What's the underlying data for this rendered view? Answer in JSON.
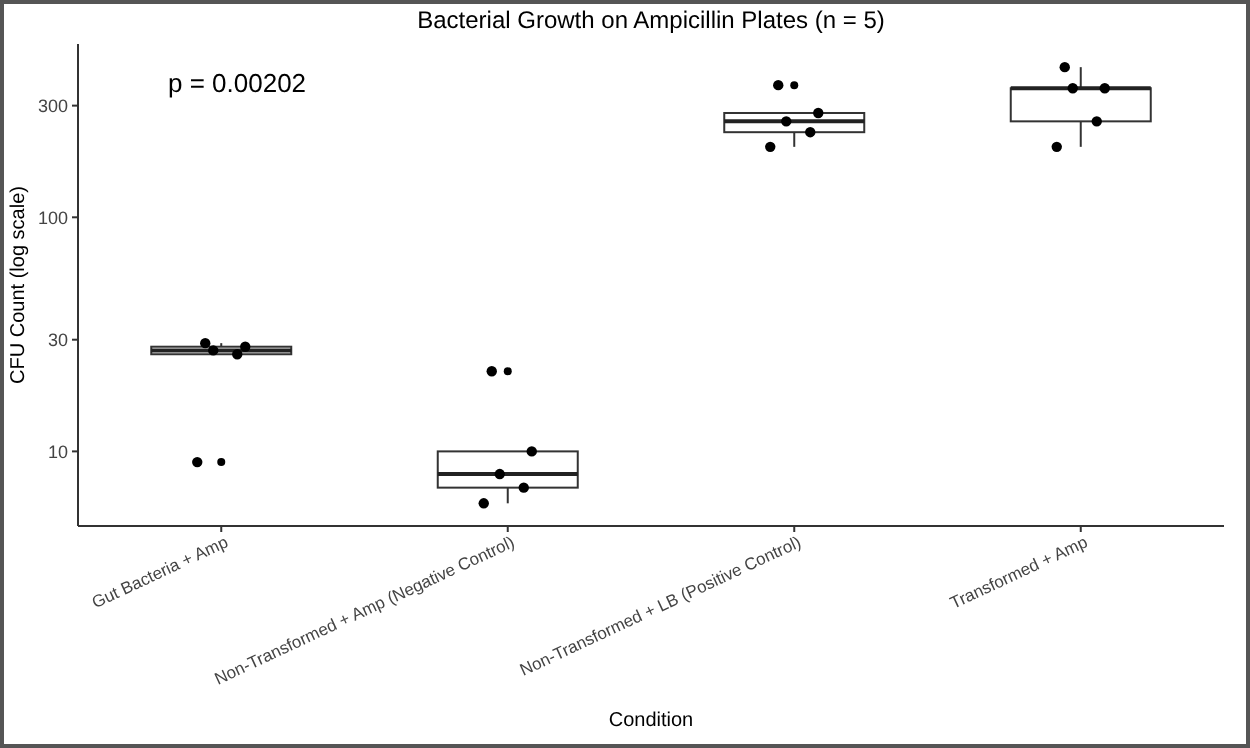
{
  "chart_data": {
    "type": "box",
    "title": "Bacterial Growth on Ampicillin Plates (n = 5)",
    "xlabel": "Condition",
    "ylabel": "CFU Count (log scale)",
    "categories": [
      "Gut Bacteria + Amp",
      "Non-Transformed + Amp (Negative Control)",
      "Non-Transformed + LB (Positive Control)",
      "Transformed + Amp"
    ],
    "boxes": [
      {
        "low": 26,
        "q1": 26,
        "median": 27,
        "q3": 28,
        "high": 29,
        "outliers": [
          9
        ]
      },
      {
        "low": 6,
        "q1": 7,
        "median": 8,
        "q3": 10,
        "high": 10,
        "outliers": [
          22
        ]
      },
      {
        "low": 200,
        "q1": 231,
        "median": 257,
        "q3": 279,
        "high": 279,
        "outliers": [
          367
        ]
      },
      {
        "low": 200,
        "q1": 257,
        "median": 356,
        "q3": 356,
        "high": 438
      }
    ],
    "series": [
      {
        "type": "scatter",
        "color": "#000000",
        "x": [
          "Gut Bacteria + Amp",
          "Gut Bacteria + Amp",
          "Gut Bacteria + Amp",
          "Gut Bacteria + Amp",
          "Gut Bacteria + Amp",
          "Non-Transformed + Amp (Negative Control)",
          "Non-Transformed + Amp (Negative Control)",
          "Non-Transformed + Amp (Negative Control)",
          "Non-Transformed + Amp (Negative Control)",
          "Non-Transformed + Amp (Negative Control)",
          "Non-Transformed + LB (Positive Control)",
          "Non-Transformed + LB (Positive Control)",
          "Non-Transformed + LB (Positive Control)",
          "Non-Transformed + LB (Positive Control)",
          "Non-Transformed + LB (Positive Control)",
          "Transformed + Amp",
          "Transformed + Amp",
          "Transformed + Amp",
          "Transformed + Amp",
          "Transformed + Amp"
        ],
        "values": [
          9,
          26,
          27,
          28,
          29,
          6,
          7,
          8,
          10,
          22,
          200,
          231,
          257,
          279,
          367,
          200,
          257,
          356,
          356,
          438
        ]
      }
    ],
    "ylim": [
      4.8,
      550
    ],
    "yticks": [
      10,
      30,
      100,
      300
    ],
    "log": true,
    "grid": false,
    "marker": "circle",
    "annotations": [
      "p = 0.00202"
    ]
  }
}
